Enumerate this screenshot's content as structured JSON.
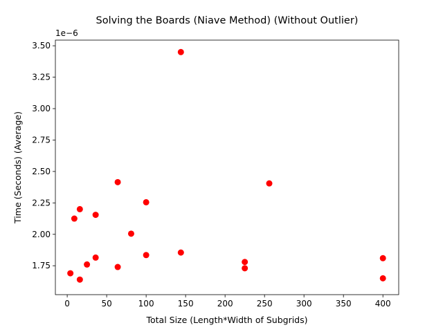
{
  "chart_data": {
    "type": "scatter",
    "title": "Solving the Boards (Niave Method) (Without Outlier)",
    "xlabel": "Total Size (Length*Width of Subgrids)",
    "ylabel": "Time (Seconds) (Average)",
    "offset_label": "1e−6",
    "xlim": [
      -15,
      420
    ],
    "ylim": [
      1.52,
      3.545
    ],
    "grid": false,
    "marker_color": "#ff0000",
    "x_ticks": [
      {
        "value": 0,
        "label": "0"
      },
      {
        "value": 50,
        "label": "50"
      },
      {
        "value": 100,
        "label": "100"
      },
      {
        "value": 150,
        "label": "150"
      },
      {
        "value": 200,
        "label": "200"
      },
      {
        "value": 250,
        "label": "250"
      },
      {
        "value": 300,
        "label": "300"
      },
      {
        "value": 350,
        "label": "350"
      },
      {
        "value": 400,
        "label": "400"
      }
    ],
    "y_ticks": [
      {
        "value": 1.75,
        "label": "1.75"
      },
      {
        "value": 2.0,
        "label": "2.00"
      },
      {
        "value": 2.25,
        "label": "2.25"
      },
      {
        "value": 2.5,
        "label": "2.50"
      },
      {
        "value": 2.75,
        "label": "2.75"
      },
      {
        "value": 3.0,
        "label": "3.00"
      },
      {
        "value": 3.25,
        "label": "3.25"
      },
      {
        "value": 3.5,
        "label": "3.50"
      }
    ],
    "points": [
      {
        "x": 4,
        "y": 1.69
      },
      {
        "x": 9,
        "y": 2.125
      },
      {
        "x": 16,
        "y": 2.2
      },
      {
        "x": 16,
        "y": 1.64
      },
      {
        "x": 25,
        "y": 1.76
      },
      {
        "x": 36,
        "y": 2.155
      },
      {
        "x": 36,
        "y": 1.815
      },
      {
        "x": 64,
        "y": 2.415
      },
      {
        "x": 64,
        "y": 1.74
      },
      {
        "x": 81,
        "y": 2.005
      },
      {
        "x": 100,
        "y": 2.255
      },
      {
        "x": 100,
        "y": 1.835
      },
      {
        "x": 144,
        "y": 3.45
      },
      {
        "x": 144,
        "y": 1.855
      },
      {
        "x": 225,
        "y": 1.78
      },
      {
        "x": 225,
        "y": 1.73
      },
      {
        "x": 256,
        "y": 2.405
      },
      {
        "x": 400,
        "y": 1.81
      },
      {
        "x": 400,
        "y": 1.65
      }
    ]
  }
}
